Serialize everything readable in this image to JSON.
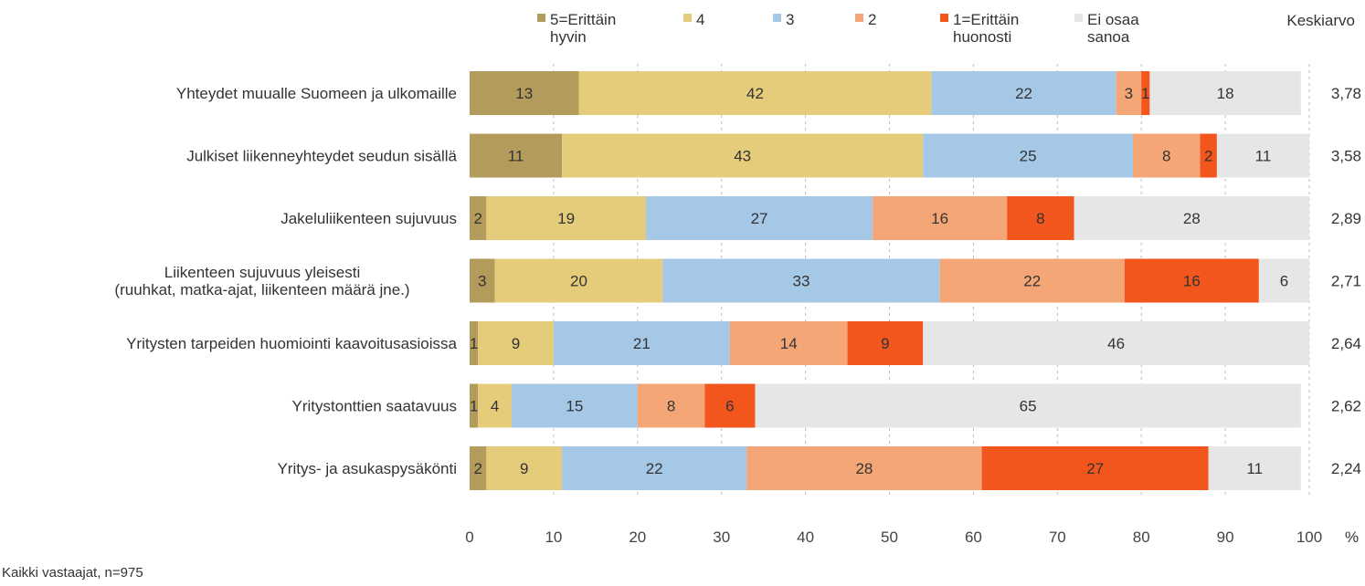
{
  "chart_data": {
    "type": "bar",
    "orientation": "horizontal",
    "stacked": true,
    "categories": [
      [
        "Yhteydet muualle Suomeen ja ulkomaille"
      ],
      [
        "Julkiset liikenneyhteydet seudun sisällä"
      ],
      [
        "Jakeluliikenteen sujuvuus"
      ],
      [
        "Liikenteen sujuvuus yleisesti",
        "(ruuhkat, matka-ajat, liikenteen määrä jne.)"
      ],
      [
        "Yritysten tarpeiden huomiointi kaavoitusasioissa"
      ],
      [
        "Yritystonttien saatavuus"
      ],
      [
        "Yritys- ja asukaspysäkönti"
      ]
    ],
    "series": [
      {
        "name": [
          "5=Erittäin",
          "hyvin"
        ],
        "color": "#b39b5b",
        "values": [
          13,
          11,
          2,
          3,
          1,
          1,
          2
        ]
      },
      {
        "name": [
          "4"
        ],
        "color": "#e4cc7a",
        "values": [
          42,
          43,
          19,
          20,
          9,
          4,
          9
        ]
      },
      {
        "name": [
          "3"
        ],
        "color": "#a5c8e6",
        "values": [
          22,
          25,
          27,
          33,
          21,
          15,
          22
        ]
      },
      {
        "name": [
          "2"
        ],
        "color": "#f5a676",
        "values": [
          3,
          8,
          16,
          22,
          14,
          8,
          28
        ]
      },
      {
        "name": [
          "1=Erittäin",
          "huonosti"
        ],
        "color": "#f2561d",
        "values": [
          1,
          2,
          8,
          16,
          9,
          6,
          27
        ]
      },
      {
        "name": [
          "Ei osaa",
          "sanoa"
        ],
        "color": "#e6e6e6",
        "values": [
          18,
          11,
          28,
          6,
          46,
          65,
          11
        ]
      }
    ],
    "averages_header": "Keskiarvo",
    "averages": [
      "3,78",
      "3,58",
      "2,89",
      "2,71",
      "2,64",
      "2,62",
      "2,24"
    ],
    "x_ticks": [
      0,
      10,
      20,
      30,
      40,
      50,
      60,
      70,
      80,
      90,
      100
    ],
    "x_unit": "%",
    "xlim": [
      0,
      100
    ],
    "grid": true,
    "legend_position": "top",
    "footnote": "Kaikki vastaajat, n=975"
  }
}
